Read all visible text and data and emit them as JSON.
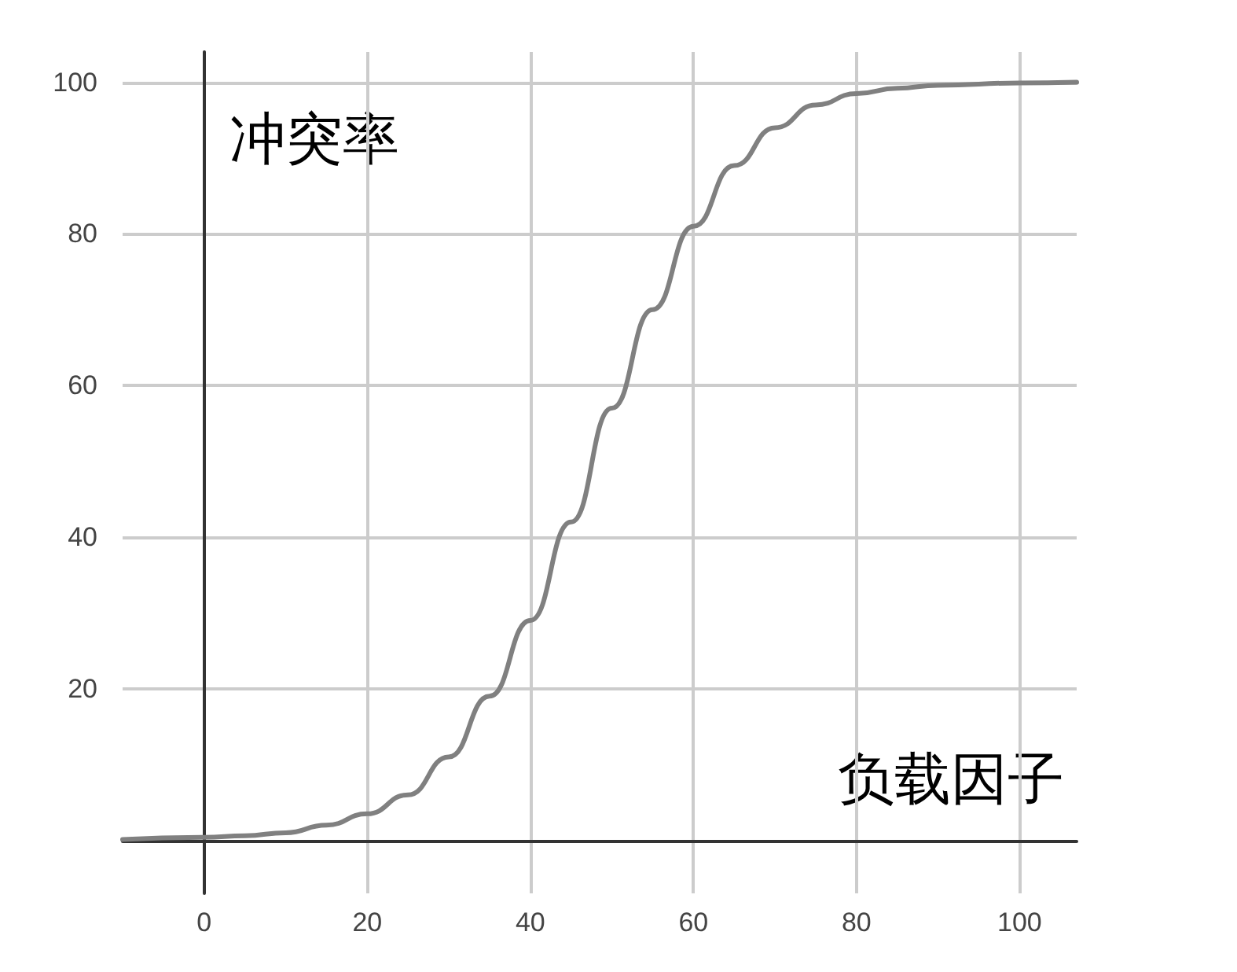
{
  "chart_data": {
    "type": "line",
    "xlabel": "负载因子",
    "ylabel": "冲突率",
    "x": [
      -10,
      0,
      5,
      10,
      15,
      20,
      25,
      30,
      35,
      40,
      45,
      50,
      55,
      60,
      65,
      70,
      75,
      80,
      85,
      90,
      100,
      107
    ],
    "series": [
      {
        "color": "#808080",
        "values": [
          0.1,
          0.4,
          0.6,
          1,
          2,
          3.5,
          6,
          11,
          19,
          29,
          42,
          57,
          70,
          81,
          89,
          94,
          97,
          98.5,
          99.2,
          99.6,
          99.9,
          100
        ]
      }
    ],
    "xlim": [
      -10,
      107
    ],
    "ylim": [
      -7,
      104
    ],
    "xticks": [
      0,
      20,
      40,
      60,
      80,
      100
    ],
    "yticks": [
      20,
      40,
      60,
      80,
      100
    ],
    "grid": true,
    "marker": "none",
    "line_style": "solid"
  }
}
